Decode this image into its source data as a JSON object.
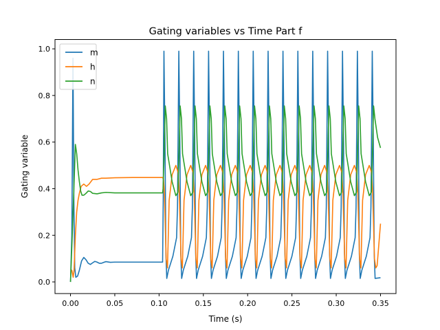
{
  "chart_data": {
    "type": "line",
    "title": "Gating variables vs Time Part f",
    "xlabel": "Time (s)",
    "ylabel": "Gating variable",
    "xlim": [
      -0.0175,
      0.3675
    ],
    "ylim": [
      -0.05,
      1.04
    ],
    "xticks": [
      0.0,
      0.05,
      0.1,
      0.15,
      0.2,
      0.25,
      0.3,
      0.35
    ],
    "xtick_labels": [
      "0.00",
      "0.05",
      "0.10",
      "0.15",
      "0.20",
      "0.25",
      "0.30",
      "0.35"
    ],
    "yticks": [
      0.0,
      0.2,
      0.4,
      0.6,
      0.8,
      1.0
    ],
    "ytick_labels": [
      "0.0",
      "0.2",
      "0.4",
      "0.6",
      "0.8",
      "1.0"
    ],
    "grid": false,
    "legend_position": "upper-left",
    "stimulus_onset": 0.104,
    "spike_times": [
      0.1055,
      0.1223,
      0.1391,
      0.1559,
      0.1727,
      0.1895,
      0.2063,
      0.2231,
      0.2399,
      0.2567,
      0.2735,
      0.2903,
      0.3071,
      0.3239,
      0.3407
    ],
    "series": [
      {
        "name": "m",
        "color": "#1f77b4",
        "values": [
          [
            0.0,
            0.0
          ],
          [
            0.0015,
            0.2
          ],
          [
            0.0028,
            0.96
          ],
          [
            0.0038,
            0.35
          ],
          [
            0.0048,
            0.06
          ],
          [
            0.006,
            0.02
          ],
          [
            0.008,
            0.025
          ],
          [
            0.01,
            0.05
          ],
          [
            0.0125,
            0.09
          ],
          [
            0.015,
            0.105
          ],
          [
            0.0175,
            0.095
          ],
          [
            0.02,
            0.08
          ],
          [
            0.0225,
            0.075
          ],
          [
            0.025,
            0.082
          ],
          [
            0.0275,
            0.088
          ],
          [
            0.03,
            0.085
          ],
          [
            0.0325,
            0.08
          ],
          [
            0.035,
            0.08
          ],
          [
            0.0375,
            0.084
          ],
          [
            0.04,
            0.087
          ],
          [
            0.045,
            0.084
          ],
          [
            0.05,
            0.085
          ],
          [
            0.06,
            0.085
          ],
          [
            0.08,
            0.085
          ],
          [
            0.1,
            0.085
          ],
          [
            0.104,
            0.085
          ]
        ],
        "spike_shape": {
          "peak": 0.99,
          "trough": 0.015,
          "interspike_max": 0.32
        }
      },
      {
        "name": "h",
        "color": "#ff7f0e",
        "values": [
          [
            0.0,
            0.05
          ],
          [
            0.0015,
            0.05
          ],
          [
            0.003,
            0.02
          ],
          [
            0.004,
            0.05
          ],
          [
            0.0055,
            0.2
          ],
          [
            0.007,
            0.3
          ],
          [
            0.0085,
            0.35
          ],
          [
            0.01,
            0.38
          ],
          [
            0.012,
            0.41
          ],
          [
            0.015,
            0.42
          ],
          [
            0.018,
            0.41
          ],
          [
            0.021,
            0.42
          ],
          [
            0.025,
            0.44
          ],
          [
            0.03,
            0.44
          ],
          [
            0.035,
            0.445
          ],
          [
            0.04,
            0.445
          ],
          [
            0.05,
            0.447
          ],
          [
            0.07,
            0.448
          ],
          [
            0.104,
            0.448
          ]
        ],
        "spike_shape": {
          "peak": 0.5,
          "trough": 0.06,
          "end_value": 0.25
        }
      },
      {
        "name": "n",
        "color": "#2ca02c",
        "values": [
          [
            0.0,
            0.0
          ],
          [
            0.002,
            0.2
          ],
          [
            0.004,
            0.42
          ],
          [
            0.0055,
            0.59
          ],
          [
            0.007,
            0.55
          ],
          [
            0.0085,
            0.48
          ],
          [
            0.01,
            0.43
          ],
          [
            0.0115,
            0.39
          ],
          [
            0.013,
            0.372
          ],
          [
            0.015,
            0.372
          ],
          [
            0.0175,
            0.38
          ],
          [
            0.02,
            0.39
          ],
          [
            0.0225,
            0.388
          ],
          [
            0.025,
            0.38
          ],
          [
            0.03,
            0.378
          ],
          [
            0.035,
            0.382
          ],
          [
            0.04,
            0.384
          ],
          [
            0.05,
            0.382
          ],
          [
            0.07,
            0.382
          ],
          [
            0.104,
            0.382
          ]
        ],
        "spike_shape": {
          "peak": 0.755,
          "trough": 0.37,
          "end_value": 0.575
        }
      }
    ]
  }
}
